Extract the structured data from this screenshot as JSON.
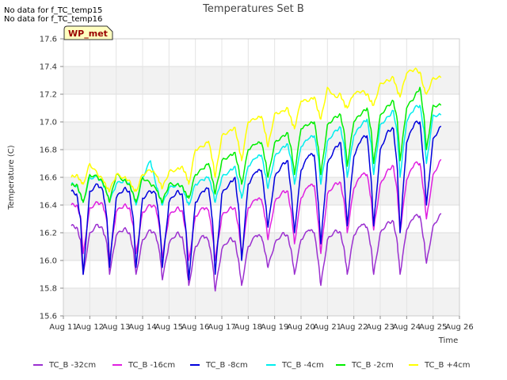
{
  "notes": [
    "No data for f_TC_temp15",
    "No data for f_TC_temp16"
  ],
  "site_badge": "WP_met",
  "chart_data": {
    "type": "line",
    "title": "Temperatures Set B",
    "xlabel": "Time",
    "ylabel": "Temperature (C)",
    "xlim": [
      11,
      26
    ],
    "ylim": [
      15.6,
      17.6
    ],
    "yticks": [
      15.6,
      15.8,
      16.0,
      16.2,
      16.4,
      16.6,
      16.8,
      17.0,
      17.2,
      17.4,
      17.6
    ],
    "ytick_labels": [
      "15.6",
      "15.8",
      "16.0",
      "16.2",
      "16.4",
      "16.6",
      "16.8",
      "17.0",
      "17.2",
      "17.4",
      "17.6"
    ],
    "xticks": [
      11,
      12,
      13,
      14,
      15,
      16,
      17,
      18,
      19,
      20,
      21,
      22,
      23,
      24,
      25,
      26
    ],
    "xtick_labels": [
      "Aug 11",
      "Aug 12",
      "Aug 13",
      "Aug 14",
      "Aug 15",
      "Aug 16",
      "Aug 17",
      "Aug 18",
      "Aug 19",
      "Aug 20",
      "Aug 21",
      "Aug 22",
      "Aug 23",
      "Aug 24",
      "Aug 25",
      "Aug 26"
    ],
    "grid": true,
    "legend_position": "bottom",
    "series": [
      {
        "name": "TC_B -32cm",
        "color": "#9b30d0",
        "x": [
          11.3,
          11.5,
          11.65,
          11.75,
          12.0,
          12.3,
          12.5,
          12.65,
          12.75,
          13.0,
          13.3,
          13.5,
          13.65,
          13.75,
          14.0,
          14.3,
          14.5,
          14.65,
          14.75,
          15.0,
          15.3,
          15.5,
          15.65,
          15.75,
          16.0,
          16.3,
          16.5,
          16.65,
          16.75,
          17.0,
          17.3,
          17.5,
          17.65,
          17.75,
          18.0,
          18.3,
          18.5,
          18.65,
          18.75,
          19.0,
          19.3,
          19.5,
          19.65,
          19.75,
          20.0,
          20.3,
          20.5,
          20.65,
          20.75,
          21.0,
          21.3,
          21.5,
          21.65,
          21.75,
          22.0,
          22.3,
          22.5,
          22.65,
          22.75,
          23.0,
          23.3,
          23.5,
          23.65,
          23.75,
          24.0,
          24.3,
          24.5,
          24.65,
          24.75,
          25.0,
          25.3
        ],
        "y": [
          16.25,
          16.24,
          16.15,
          15.9,
          16.2,
          16.26,
          16.22,
          16.12,
          15.9,
          16.18,
          16.23,
          16.2,
          16.08,
          15.9,
          16.15,
          16.22,
          16.18,
          16.05,
          15.86,
          16.12,
          16.2,
          16.17,
          16.0,
          15.82,
          16.1,
          16.18,
          16.14,
          15.98,
          15.78,
          16.08,
          16.16,
          16.14,
          15.98,
          15.82,
          16.1,
          16.18,
          16.17,
          16.05,
          15.95,
          16.12,
          16.2,
          16.18,
          16.05,
          15.9,
          16.15,
          16.22,
          16.2,
          16.0,
          15.82,
          16.15,
          16.22,
          16.2,
          16.06,
          15.9,
          16.18,
          16.26,
          16.24,
          16.1,
          15.9,
          16.2,
          16.28,
          16.28,
          16.12,
          15.9,
          16.22,
          16.32,
          16.32,
          16.15,
          15.98,
          16.25,
          16.34
        ]
      },
      {
        "name": "TC_B -16cm",
        "color": "#e020e0",
        "x": [
          11.3,
          11.5,
          11.65,
          11.75,
          12.0,
          12.3,
          12.5,
          12.65,
          12.75,
          13.0,
          13.3,
          13.5,
          13.65,
          13.75,
          14.0,
          14.3,
          14.5,
          14.65,
          14.75,
          15.0,
          15.3,
          15.5,
          15.65,
          15.75,
          16.0,
          16.3,
          16.5,
          16.65,
          16.75,
          17.0,
          17.3,
          17.5,
          17.65,
          17.75,
          18.0,
          18.3,
          18.5,
          18.65,
          18.75,
          19.0,
          19.3,
          19.5,
          19.65,
          19.75,
          20.0,
          20.3,
          20.5,
          20.65,
          20.75,
          21.0,
          21.3,
          21.5,
          21.65,
          21.75,
          22.0,
          22.3,
          22.5,
          22.65,
          22.75,
          23.0,
          23.3,
          23.5,
          23.65,
          23.75,
          24.0,
          24.3,
          24.5,
          24.65,
          24.75,
          25.0,
          25.3
        ],
        "y": [
          16.4,
          16.4,
          16.32,
          16.05,
          16.38,
          16.42,
          16.4,
          16.28,
          16.0,
          16.35,
          16.4,
          16.38,
          16.25,
          16.05,
          16.35,
          16.4,
          16.38,
          16.22,
          16.02,
          16.32,
          16.38,
          16.36,
          16.2,
          16.0,
          16.32,
          16.38,
          16.36,
          16.18,
          16.0,
          16.32,
          16.38,
          16.38,
          16.22,
          16.05,
          16.38,
          16.44,
          16.44,
          16.3,
          16.15,
          16.42,
          16.5,
          16.5,
          16.32,
          16.12,
          16.45,
          16.54,
          16.54,
          16.28,
          16.05,
          16.48,
          16.56,
          16.56,
          16.4,
          16.2,
          16.52,
          16.62,
          16.62,
          16.45,
          16.22,
          16.55,
          16.66,
          16.68,
          16.48,
          16.2,
          16.58,
          16.7,
          16.7,
          16.5,
          16.3,
          16.62,
          16.73
        ]
      },
      {
        "name": "TC_B -8cm",
        "color": "#0000dd",
        "x": [
          11.3,
          11.5,
          11.65,
          11.75,
          12.0,
          12.3,
          12.5,
          12.65,
          12.75,
          13.0,
          13.3,
          13.5,
          13.65,
          13.75,
          14.0,
          14.3,
          14.5,
          14.65,
          14.75,
          15.0,
          15.3,
          15.5,
          15.65,
          15.75,
          16.0,
          16.3,
          16.5,
          16.65,
          16.75,
          17.0,
          17.3,
          17.5,
          17.65,
          17.75,
          18.0,
          18.3,
          18.5,
          18.65,
          18.75,
          19.0,
          19.3,
          19.5,
          19.65,
          19.75,
          20.0,
          20.3,
          20.5,
          20.65,
          20.75,
          21.0,
          21.3,
          21.5,
          21.65,
          21.75,
          22.0,
          22.3,
          22.5,
          22.65,
          22.75,
          23.0,
          23.3,
          23.5,
          23.65,
          23.75,
          24.0,
          24.3,
          24.5,
          24.65,
          24.75,
          25.0,
          25.3
        ],
        "y": [
          16.5,
          16.48,
          16.3,
          15.9,
          16.5,
          16.55,
          16.5,
          16.3,
          15.95,
          16.45,
          16.52,
          16.5,
          16.3,
          15.95,
          16.45,
          16.5,
          16.48,
          16.25,
          15.95,
          16.42,
          16.5,
          16.48,
          16.2,
          15.86,
          16.42,
          16.5,
          16.52,
          16.28,
          15.9,
          16.48,
          16.56,
          16.6,
          16.35,
          16.0,
          16.55,
          16.64,
          16.65,
          16.42,
          16.24,
          16.6,
          16.7,
          16.72,
          16.45,
          16.2,
          16.65,
          16.76,
          16.76,
          16.42,
          16.12,
          16.7,
          16.82,
          16.85,
          16.55,
          16.25,
          16.75,
          16.88,
          16.9,
          16.6,
          16.25,
          16.8,
          16.94,
          16.95,
          16.65,
          16.2,
          16.85,
          16.99,
          17.0,
          16.7,
          16.4,
          16.88,
          16.97
        ]
      },
      {
        "name": "TC_B -4cm",
        "color": "#00eeee",
        "x": [
          11.3,
          11.5,
          11.65,
          11.75,
          12.0,
          12.3,
          12.5,
          12.65,
          12.75,
          13.0,
          13.3,
          13.5,
          13.65,
          13.75,
          14.0,
          14.3,
          14.5,
          14.65,
          14.75,
          15.0,
          15.3,
          15.5,
          15.65,
          15.75,
          16.0,
          16.3,
          16.5,
          16.65,
          16.75,
          17.0,
          17.3,
          17.5,
          17.65,
          17.75,
          18.0,
          18.3,
          18.5,
          18.65,
          18.75,
          19.0,
          19.3,
          19.5,
          19.65,
          19.75,
          20.0,
          20.3,
          20.5,
          20.65,
          20.75,
          21.0,
          21.3,
          21.5,
          21.65,
          21.75,
          22.0,
          22.3,
          22.5,
          22.65,
          22.75,
          23.0,
          23.3,
          23.5,
          23.65,
          23.75,
          24.0,
          24.3,
          24.5,
          24.65,
          24.75,
          25.0,
          25.3
        ],
        "y": [
          16.55,
          16.54,
          16.48,
          16.42,
          16.6,
          16.6,
          16.55,
          16.48,
          16.42,
          16.55,
          16.58,
          16.56,
          16.48,
          16.4,
          16.6,
          16.72,
          16.55,
          16.45,
          16.4,
          16.52,
          16.55,
          16.54,
          16.45,
          16.4,
          16.55,
          16.58,
          16.6,
          16.5,
          16.42,
          16.6,
          16.65,
          16.68,
          16.55,
          16.45,
          16.68,
          16.74,
          16.76,
          16.62,
          16.52,
          16.75,
          16.82,
          16.84,
          16.7,
          16.55,
          16.82,
          16.88,
          16.9,
          16.75,
          16.55,
          16.86,
          16.94,
          16.96,
          16.8,
          16.6,
          16.9,
          16.98,
          17.02,
          16.85,
          16.62,
          16.98,
          17.04,
          17.08,
          16.9,
          16.6,
          17.0,
          17.1,
          17.12,
          16.95,
          16.7,
          17.05,
          17.05
        ]
      },
      {
        "name": "TC_B -2cm",
        "color": "#00ee00",
        "x": [
          11.3,
          11.5,
          11.65,
          11.75,
          12.0,
          12.3,
          12.5,
          12.65,
          12.75,
          13.0,
          13.3,
          13.5,
          13.65,
          13.75,
          14.0,
          14.3,
          14.5,
          14.65,
          14.75,
          15.0,
          15.3,
          15.5,
          15.65,
          15.75,
          16.0,
          16.3,
          16.5,
          16.65,
          16.75,
          17.0,
          17.3,
          17.5,
          17.65,
          17.75,
          18.0,
          18.3,
          18.5,
          18.65,
          18.75,
          19.0,
          19.3,
          19.5,
          19.65,
          19.75,
          20.0,
          20.3,
          20.5,
          20.65,
          20.75,
          21.0,
          21.3,
          21.5,
          21.65,
          21.75,
          22.0,
          22.3,
          22.5,
          22.65,
          22.75,
          23.0,
          23.3,
          23.5,
          23.65,
          23.75,
          24.0,
          24.3,
          24.5,
          24.65,
          24.75,
          25.0,
          25.3
        ],
        "y": [
          16.54,
          16.55,
          16.48,
          16.42,
          16.62,
          16.6,
          16.56,
          16.48,
          16.42,
          16.62,
          16.58,
          16.55,
          16.48,
          16.42,
          16.6,
          16.55,
          16.52,
          16.45,
          16.42,
          16.55,
          16.55,
          16.54,
          16.48,
          16.45,
          16.62,
          16.66,
          16.7,
          16.58,
          16.48,
          16.72,
          16.76,
          16.78,
          16.65,
          16.55,
          16.8,
          16.84,
          16.85,
          16.72,
          16.6,
          16.85,
          16.9,
          16.92,
          16.78,
          16.62,
          16.95,
          16.98,
          17.0,
          16.82,
          16.62,
          16.98,
          17.04,
          17.05,
          16.9,
          16.68,
          17.0,
          17.06,
          17.1,
          16.95,
          16.7,
          17.05,
          17.12,
          17.15,
          17.0,
          16.72,
          17.1,
          17.18,
          17.25,
          17.05,
          16.8,
          17.12,
          17.12
        ]
      },
      {
        "name": "TC_B +4cm",
        "color": "#ffff00",
        "x": [
          11.3,
          11.5,
          11.65,
          11.75,
          12.0,
          12.3,
          12.5,
          12.65,
          12.75,
          13.0,
          13.3,
          13.5,
          13.65,
          13.75,
          14.0,
          14.3,
          14.5,
          14.65,
          14.75,
          15.0,
          15.3,
          15.5,
          15.65,
          15.75,
          16.0,
          16.3,
          16.5,
          16.65,
          16.75,
          17.0,
          17.3,
          17.5,
          17.65,
          17.75,
          18.0,
          18.3,
          18.5,
          18.65,
          18.75,
          19.0,
          19.3,
          19.5,
          19.65,
          19.75,
          20.0,
          20.3,
          20.5,
          20.65,
          20.75,
          21.0,
          21.3,
          21.5,
          21.65,
          21.75,
          22.0,
          22.3,
          22.5,
          22.65,
          22.75,
          23.0,
          23.3,
          23.5,
          23.65,
          23.75,
          24.0,
          24.3,
          24.5,
          24.65,
          24.75,
          25.0,
          25.3
        ],
        "y": [
          16.6,
          16.62,
          16.58,
          16.55,
          16.7,
          16.62,
          16.58,
          16.52,
          16.5,
          16.62,
          16.6,
          16.58,
          16.52,
          16.5,
          16.62,
          16.65,
          16.62,
          16.56,
          16.52,
          16.64,
          16.66,
          16.68,
          16.62,
          16.55,
          16.8,
          16.82,
          16.86,
          16.72,
          16.6,
          16.9,
          16.94,
          16.96,
          16.82,
          16.72,
          17.0,
          17.02,
          17.04,
          16.92,
          16.82,
          17.06,
          17.08,
          17.1,
          17.0,
          16.95,
          17.15,
          17.15,
          17.18,
          17.08,
          17.02,
          17.25,
          17.18,
          17.2,
          17.12,
          17.1,
          17.2,
          17.22,
          17.2,
          17.15,
          17.12,
          17.28,
          17.3,
          17.32,
          17.22,
          17.18,
          17.35,
          17.38,
          17.36,
          17.25,
          17.2,
          17.32,
          17.32
        ]
      }
    ]
  }
}
